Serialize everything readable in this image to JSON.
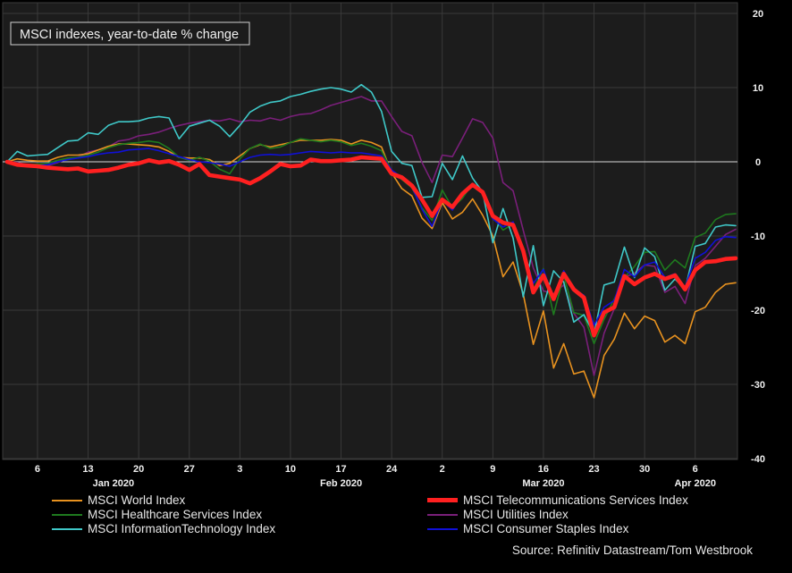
{
  "chart_data": {
    "type": "line",
    "title": "MSCI indexes, year-to-date % change",
    "source": "Source: Refinitiv Datastream/Tom Westbrook",
    "ylim": [
      -40,
      20
    ],
    "yticks": [
      20,
      10,
      0,
      -10,
      -20,
      -30,
      -40
    ],
    "grid": true,
    "legend_position": "bottom",
    "x_ticks": [
      {
        "label": "6",
        "i": 3
      },
      {
        "label": "13",
        "i": 8
      },
      {
        "label": "20",
        "i": 13
      },
      {
        "label": "27",
        "i": 18
      },
      {
        "label": "3",
        "i": 23
      },
      {
        "label": "10",
        "i": 28
      },
      {
        "label": "17",
        "i": 33
      },
      {
        "label": "24",
        "i": 38
      },
      {
        "label": "2",
        "i": 43
      },
      {
        "label": "9",
        "i": 48
      },
      {
        "label": "16",
        "i": 53
      },
      {
        "label": "23",
        "i": 58
      },
      {
        "label": "30",
        "i": 63
      },
      {
        "label": "6",
        "i": 68
      }
    ],
    "month_labels": [
      {
        "label": "Jan 2020",
        "i": 10.5
      },
      {
        "label": "Feb 2020",
        "i": 33
      },
      {
        "label": "Mar 2020",
        "i": 53
      },
      {
        "label": "Apr 2020",
        "i": 68
      }
    ],
    "series": [
      {
        "name": "MSCI World Index",
        "color": "#e8921f",
        "width": 1.6,
        "values": [
          0,
          0.4,
          0.2,
          0.1,
          0.1,
          0.6,
          0.9,
          0.9,
          1.1,
          1.6,
          2.1,
          2.4,
          2.4,
          2.3,
          2.2,
          2.0,
          1.4,
          0.6,
          0.5,
          0.5,
          0.3,
          -0.5,
          -0.2,
          0.8,
          1.8,
          2.3,
          2.0,
          2.3,
          2.6,
          2.9,
          2.9,
          2.9,
          3.0,
          2.9,
          2.4,
          2.9,
          2.6,
          2.0,
          -1.5,
          -3.6,
          -4.6,
          -7.6,
          -9.0,
          -5.5,
          -7.7,
          -6.8,
          -5.0,
          -7.2,
          -10.0,
          -15.5,
          -13.5,
          -17.8,
          -24.6,
          -20.1,
          -27.8,
          -24.5,
          -28.6,
          -28.2,
          -31.8,
          -26.1,
          -23.9,
          -20.4,
          -22.5,
          -20.8,
          -21.4,
          -24.3,
          -23.4,
          -24.5,
          -20.2,
          -19.6,
          -17.6,
          -16.5,
          -16.3
        ]
      },
      {
        "name": "MSCI Healthcare Services Index",
        "color": "#1e7a1e",
        "width": 1.6,
        "values": [
          0,
          -0.2,
          -0.4,
          -0.3,
          -0.2,
          0.2,
          0.5,
          0.6,
          0.9,
          1.3,
          1.9,
          2.3,
          2.5,
          2.6,
          2.8,
          2.6,
          1.8,
          0.6,
          0.2,
          0.6,
          0.1,
          -1.0,
          -1.6,
          0.4,
          1.8,
          2.4,
          1.8,
          2.0,
          2.6,
          3.1,
          2.9,
          2.7,
          2.9,
          2.7,
          2.2,
          2.5,
          2.1,
          1.5,
          -1.2,
          -2.4,
          -3.5,
          -6.2,
          -7.9,
          -3.8,
          -6.2,
          -4.9,
          -2.9,
          -4.3,
          -7.3,
          -9.2,
          -8.4,
          -12.3,
          -17.2,
          -14.4,
          -20.6,
          -15.3,
          -20.3,
          -20.7,
          -24.5,
          -21.2,
          -18.5,
          -15.6,
          -14.1,
          -12.2,
          -12.1,
          -14.6,
          -13.2,
          -14.3,
          -10.2,
          -9.6,
          -7.8,
          -7.1,
          -7.0
        ]
      },
      {
        "name": "MSCI InformationTechnology Index",
        "color": "#3fc8c8",
        "width": 1.6,
        "values": [
          0,
          1.4,
          0.8,
          0.9,
          1.0,
          1.9,
          2.8,
          2.9,
          3.9,
          3.7,
          4.9,
          5.4,
          5.4,
          5.5,
          5.9,
          6.1,
          5.9,
          3.1,
          4.8,
          5.2,
          5.6,
          4.8,
          3.4,
          4.9,
          6.7,
          7.5,
          8.0,
          8.2,
          8.8,
          9.1,
          9.5,
          9.8,
          10.0,
          9.8,
          9.4,
          10.4,
          9.4,
          6.8,
          1.4,
          -0.2,
          -0.5,
          -4.8,
          -4.7,
          -0.2,
          -2.4,
          0.8,
          -2.2,
          -4.1,
          -10.9,
          -6.3,
          -10.3,
          -18.2,
          -11.3,
          -19.4,
          -14.7,
          -16.2,
          -21.6,
          -20.6,
          -23.2,
          -16.6,
          -16.2,
          -11.5,
          -15.6,
          -11.6,
          -12.8,
          -17.3,
          -15.8,
          -17.2,
          -11.4,
          -11.0,
          -8.8,
          -8.5,
          -8.6
        ]
      },
      {
        "name": "MSCI Telecommunications Services Index",
        "color": "#ff2020",
        "width": 4.6,
        "values": [
          0,
          -0.4,
          -0.5,
          -0.6,
          -0.8,
          -0.9,
          -1.0,
          -0.9,
          -1.3,
          -1.2,
          -1.1,
          -0.8,
          -0.4,
          -0.2,
          0.2,
          -0.1,
          0.1,
          -0.4,
          -1.1,
          -0.3,
          -1.8,
          -2.0,
          -2.2,
          -2.4,
          -2.9,
          -2.2,
          -1.3,
          -0.3,
          -0.6,
          -0.5,
          0.3,
          0.1,
          0.1,
          0.2,
          0.3,
          0.6,
          0.5,
          0.4,
          -1.6,
          -2.1,
          -3.2,
          -5.1,
          -7.3,
          -5.1,
          -6.1,
          -4.3,
          -3.1,
          -4.1,
          -7.3,
          -8.2,
          -8.5,
          -12.0,
          -17.6,
          -15.3,
          -18.5,
          -15.1,
          -17.2,
          -18.3,
          -23.4,
          -20.3,
          -19.6,
          -15.4,
          -16.5,
          -15.6,
          -15.1,
          -15.8,
          -15.3,
          -17.2,
          -14.6,
          -13.5,
          -13.4,
          -13.1,
          -13.0
        ]
      },
      {
        "name": "MSCI Utilities Index",
        "color": "#7a1f7a",
        "width": 1.6,
        "values": [
          0,
          -0.1,
          -0.4,
          -0.3,
          -0.5,
          -0.1,
          0.4,
          0.6,
          1.3,
          1.6,
          2.0,
          2.8,
          3.0,
          3.5,
          3.7,
          4.0,
          4.5,
          4.9,
          5.2,
          5.4,
          5.6,
          5.5,
          5.8,
          5.4,
          5.6,
          5.5,
          5.9,
          5.6,
          6.1,
          6.4,
          6.5,
          7.0,
          7.6,
          8.0,
          8.4,
          8.8,
          8.2,
          8.2,
          6.1,
          4.1,
          3.5,
          -0.1,
          -2.8,
          0.9,
          0.7,
          3.2,
          5.8,
          5.3,
          3.2,
          -2.8,
          -3.9,
          -9.2,
          -14.3,
          -17.4,
          -17.8,
          -16.6,
          -20.4,
          -22.3,
          -28.8,
          -23.1,
          -19.8,
          -15.6,
          -15.0,
          -13.9,
          -14.1,
          -17.6,
          -16.8,
          -19.1,
          -14.0,
          -13.0,
          -11.4,
          -9.8,
          -9.1
        ]
      },
      {
        "name": "MSCI Consumer Staples Index",
        "color": "#1010d8",
        "width": 1.6,
        "values": [
          0,
          -0.3,
          -0.5,
          -0.5,
          -0.4,
          0,
          0.3,
          0.5,
          0.7,
          1.0,
          1.2,
          1.3,
          1.6,
          1.7,
          1.8,
          1.5,
          1.1,
          0.7,
          0.3,
          0,
          -0.1,
          -0.3,
          -0.6,
          0,
          0.6,
          0.9,
          1.0,
          0.9,
          1.0,
          1.2,
          1.4,
          1.3,
          1.2,
          1.3,
          1.2,
          1.2,
          1.0,
          0.8,
          -1.1,
          -2.1,
          -3.4,
          -6.4,
          -8.7,
          -5.2,
          -6.5,
          -4.4,
          -2.9,
          -3.9,
          -7.7,
          -8.8,
          -8.1,
          -11.7,
          -16.4,
          -14.5,
          -18.6,
          -14.7,
          -17.1,
          -18.0,
          -22.0,
          -19.6,
          -18.7,
          -14.5,
          -15.5,
          -13.9,
          -13.5,
          -15.6,
          -15.1,
          -16.9,
          -13.0,
          -12.2,
          -10.6,
          -10.1,
          -10.2
        ]
      }
    ]
  },
  "legend": [
    {
      "label": "MSCI World Index",
      "color": "#e8921f",
      "thick": false
    },
    {
      "label": "MSCI Telecommunications Services Index",
      "color": "#ff2020",
      "thick": true
    },
    {
      "label": "MSCI Healthcare Services Index",
      "color": "#1e7a1e",
      "thick": false
    },
    {
      "label": "MSCI Utilities Index",
      "color": "#7a1f7a",
      "thick": false
    },
    {
      "label": "MSCI InformationTechnology Index",
      "color": "#3fc8c8",
      "thick": false
    },
    {
      "label": "MSCI Consumer Staples Index",
      "color": "#1010d8",
      "thick": false
    }
  ]
}
